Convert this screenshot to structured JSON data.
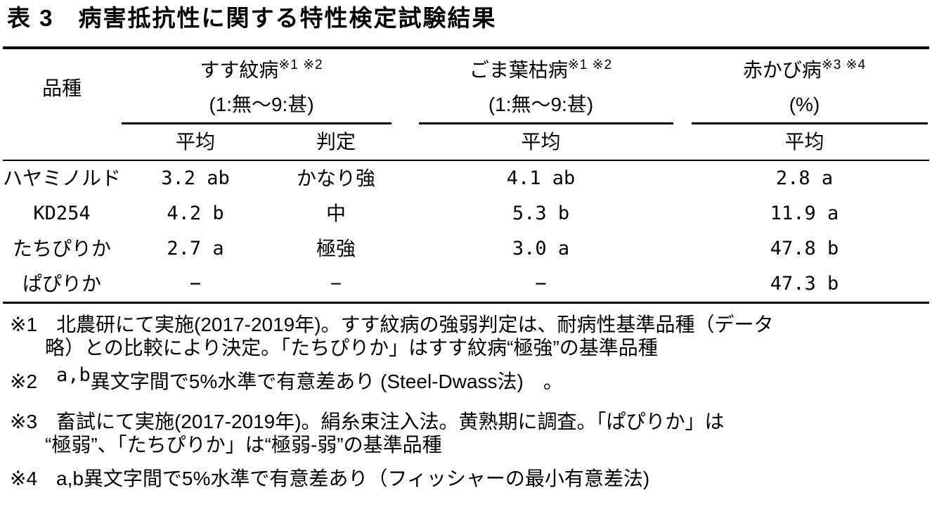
{
  "title": "表 3　病害抵抗性に関する特性検定試験結果",
  "table": {
    "variety_header": "品種",
    "groups": [
      {
        "name": "すす紋病",
        "sup": "※1 ※2",
        "scale": "(1:無～9:甚)"
      },
      {
        "name": "ごま葉枯病",
        "sup": "※1 ※2",
        "scale": "(1:無～9:甚)"
      },
      {
        "name": "赤かび病",
        "sup": "※3 ※4",
        "scale": "(%)"
      }
    ],
    "subheaders": [
      "平均",
      "判定",
      "平均",
      "平均"
    ],
    "rows": [
      {
        "variety": "ハヤミノルド",
        "susumon_avg": "3.2 ab",
        "susumon_judge": "かなり強",
        "goma_avg": "4.1 ab",
        "akakabi_avg": "2.8 a"
      },
      {
        "variety": "KD254",
        "susumon_avg": "4.2 b",
        "susumon_judge": "中",
        "goma_avg": "5.3 b",
        "akakabi_avg": "11.9 a"
      },
      {
        "variety": "たちぴりか",
        "susumon_avg": "2.7 a",
        "susumon_judge": "極強",
        "goma_avg": "3.0 a",
        "akakabi_avg": "47.8 b"
      },
      {
        "variety": "ぱぴりか",
        "susumon_avg": "−",
        "susumon_judge": "−",
        "goma_avg": "−",
        "akakabi_avg": "47.3 b"
      }
    ]
  },
  "footnotes": [
    {
      "marker": "※1",
      "sup": "",
      "line1": "北農研にて実施(2017-2019年)。すす紋病の強弱判定は、耐病性基準品種（データ",
      "line2": "略）との比較により決定。「たちぴりか」はすす紋病“極強”の基準品種"
    },
    {
      "marker": "※2",
      "sup": "a,b",
      "line1": "異文字間で5%水準で有意差あり (Steel-Dwass法)　。",
      "line2": ""
    },
    {
      "marker": "※3",
      "sup": "",
      "line1": "畜試にて実施(2017-2019年)。絹糸束注入法。黄熟期に調査。「ぱぴりか」は",
      "line2": "“極弱”、「たちぴりか」は“極弱-弱”の基準品種"
    },
    {
      "marker": "※4",
      "sup": "",
      "line1": "a,b異文字間で5%水準で有意差あり（フィッシャーの最小有意差法)",
      "line2": ""
    }
  ]
}
